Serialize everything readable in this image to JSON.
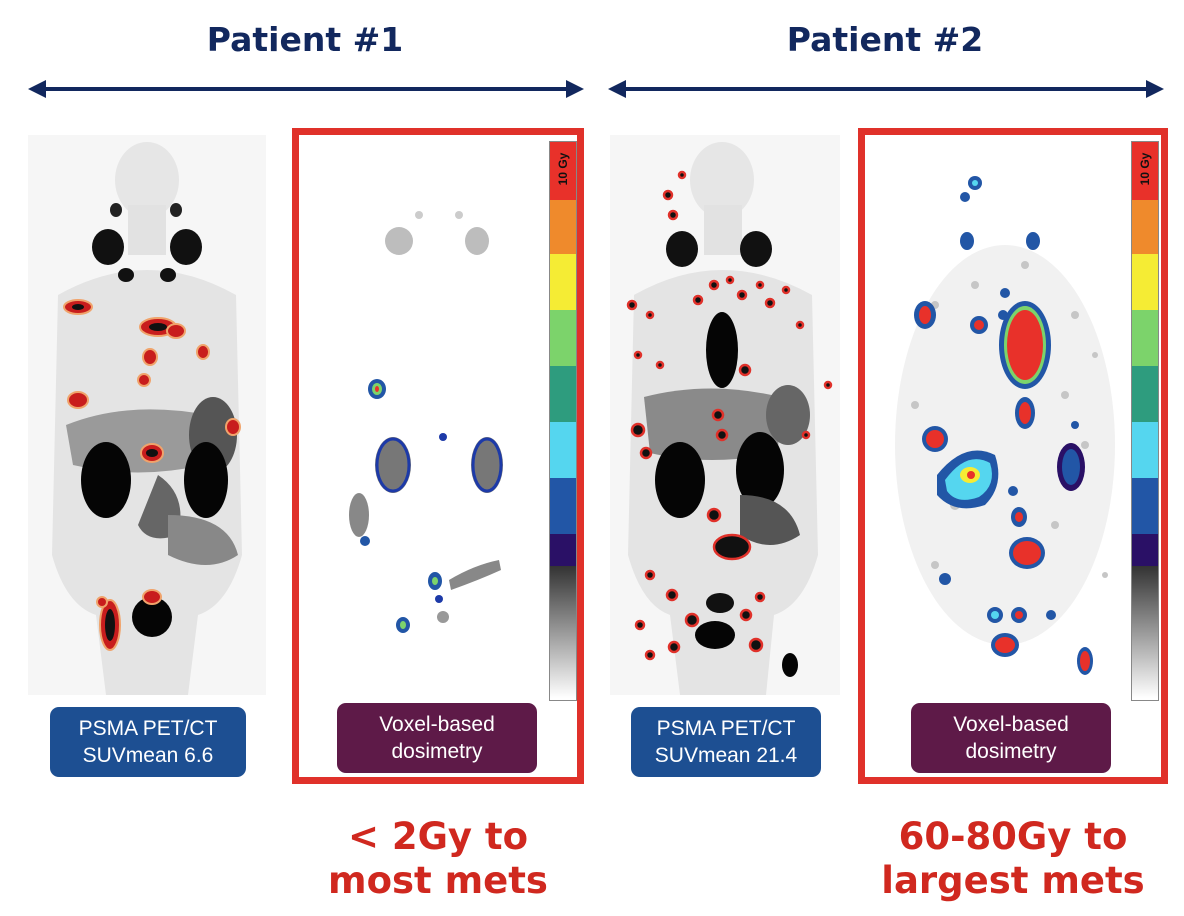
{
  "patients": [
    {
      "title": "Patient #1",
      "pet_label_line1": "PSMA PET/CT",
      "pet_label_line2": "SUVmean 6.6",
      "dosimetry_label_line1": "Voxel-based",
      "dosimetry_label_line2": "dosimetry",
      "dose_note_line1": "< 2Gy to",
      "dose_note_line2": "most mets"
    },
    {
      "title": "Patient #2",
      "pet_label_line1": "PSMA PET/CT",
      "pet_label_line2": "SUVmean 21.4",
      "dosimetry_label_line1": "Voxel-based",
      "dosimetry_label_line2": "dosimetry",
      "dose_note_line1": "60-80Gy to",
      "dose_note_line2": "largest mets"
    }
  ],
  "colorbar": {
    "max_label": "10 Gy",
    "colors": [
      "#e8312a",
      "#ef8a2c",
      "#f5ec34",
      "#7cd36b",
      "#2e9c7e",
      "#55d6ef",
      "#2256a6",
      "#2a1066"
    ]
  },
  "colors": {
    "title": "#12285e",
    "frame": "#e0312a",
    "pet_label_bg": "#1d4f92",
    "dosimetry_label_bg": "#5e1a48",
    "note": "#d0281f"
  }
}
